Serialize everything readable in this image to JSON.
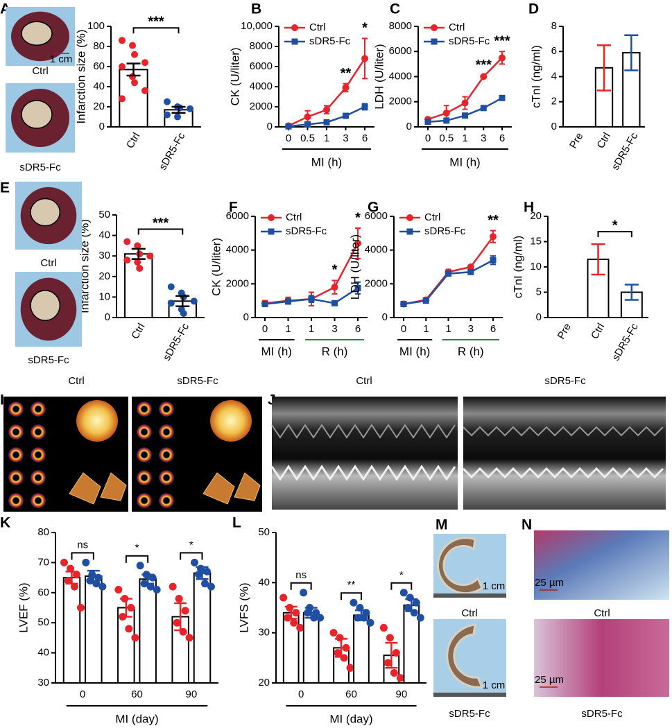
{
  "chart_data": [
    {
      "panel": "A",
      "type": "bar",
      "ylabel": "Infarction size (%)",
      "categories": [
        "Ctrl",
        "sDR5-Fc"
      ],
      "values": [
        57,
        17
      ],
      "errors": [
        6,
        3
      ],
      "points": [
        [
          86,
          81,
          72,
          64,
          60,
          50,
          44,
          36,
          28
        ],
        [
          25,
          20,
          19,
          18,
          12,
          10
        ]
      ],
      "colors": [
        "#e8232a",
        "#1f4fa3"
      ],
      "errorbar_color": "#000000",
      "ylim": [
        0,
        100
      ],
      "yticks": [
        0,
        20,
        40,
        60,
        80,
        100
      ],
      "annotations": [
        "***",
        null
      ],
      "image_labels": [
        "Ctrl",
        "sDR5-Fc"
      ],
      "image_scale": "1 cm"
    },
    {
      "panel": "B",
      "type": "line",
      "ylabel": "CK (U/liter)",
      "xlabel": "MI (h)",
      "categories": [
        "0",
        "0.5",
        "1",
        "3",
        "6"
      ],
      "series": [
        {
          "name": "Ctrl",
          "color": "#e8232a",
          "marker": "circle",
          "values": [
            100,
            1000,
            1700,
            3900,
            6800
          ],
          "errors": [
            50,
            600,
            400,
            400,
            2000
          ]
        },
        {
          "name": "sDR5-Fc",
          "color": "#1f4fa3",
          "marker": "square",
          "values": [
            50,
            250,
            450,
            1100,
            2000
          ],
          "errors": [
            30,
            100,
            100,
            200,
            300
          ]
        }
      ],
      "ylim": [
        0,
        10000
      ],
      "yticks": [
        0,
        2000,
        4000,
        6000,
        8000,
        {
          "value": 10000,
          "label": "10,000"
        }
      ],
      "annotations": [
        null,
        null,
        null,
        "**",
        "*"
      ]
    },
    {
      "panel": "C",
      "type": "line",
      "ylabel": "LDH (U/liter)",
      "xlabel": "MI (h)",
      "categories": [
        "0",
        "0.5",
        "1",
        "3",
        "6"
      ],
      "series": [
        {
          "name": "Ctrl",
          "color": "#e8232a",
          "marker": "circle",
          "values": [
            600,
            1100,
            1900,
            4000,
            5500
          ],
          "errors": [
            100,
            600,
            500,
            100,
            500
          ]
        },
        {
          "name": "sDR5-Fc",
          "color": "#1f4fa3",
          "marker": "square",
          "values": [
            400,
            500,
            900,
            1500,
            2300
          ],
          "errors": [
            50,
            80,
            100,
            100,
            100
          ]
        }
      ],
      "ylim": [
        0,
        8000
      ],
      "yticks": [
        0,
        2000,
        4000,
        6000,
        8000
      ],
      "annotations": [
        null,
        null,
        null,
        "***",
        "***"
      ]
    },
    {
      "panel": "D",
      "type": "bar",
      "ylabel": "cTnI (ng/ml)",
      "categories": [
        "Pre",
        "Ctrl",
        "sDR5-Fc"
      ],
      "values": [
        0,
        4.7,
        5.9
      ],
      "errors": [
        null,
        1.8,
        1.4
      ],
      "colors": [
        "#000000",
        "#e8232a",
        "#1f4fa3"
      ],
      "ylim": [
        0,
        8
      ],
      "yticks": [
        0,
        2,
        4,
        6,
        8
      ]
    },
    {
      "panel": "E",
      "type": "bar",
      "ylabel": "Infarction size (%)",
      "categories": [
        "Ctrl",
        "sDR5-Fc"
      ],
      "values": [
        31,
        8
      ],
      "errors": [
        2.5,
        2.5
      ],
      "points": [
        [
          37,
          35,
          31,
          30,
          28,
          27,
          24
        ],
        [
          15,
          12,
          10,
          8,
          7,
          4,
          2
        ]
      ],
      "colors": [
        "#e8232a",
        "#1f4fa3"
      ],
      "errorbar_color": "#000000",
      "ylim": [
        0,
        50
      ],
      "yticks": [
        0,
        10,
        20,
        30,
        40,
        50
      ],
      "annotations": [
        "***",
        null
      ],
      "image_labels": [
        "Ctrl",
        "sDR5-Fc"
      ]
    },
    {
      "panel": "F",
      "type": "line",
      "ylabel": "CK (U/liter)",
      "categories": [
        "0",
        "1",
        "1",
        "3",
        "6"
      ],
      "groups": [
        0,
        0,
        1,
        1,
        1
      ],
      "group_labels": [
        "MI (h)",
        "R (h)"
      ],
      "group_colors": [
        "#000000",
        "#1f8a3a"
      ],
      "series": [
        {
          "name": "Ctrl",
          "color": "#e8232a",
          "marker": "circle",
          "values": [
            850,
            1000,
            1100,
            1800,
            4400
          ],
          "errors": [
            150,
            200,
            400,
            400,
            900
          ]
        },
        {
          "name": "sDR5-Fc",
          "color": "#1f4fa3",
          "marker": "square",
          "values": [
            800,
            950,
            1100,
            850,
            1750
          ],
          "errors": [
            100,
            150,
            200,
            80,
            350
          ]
        }
      ],
      "ylim": [
        0,
        6000
      ],
      "yticks": [
        0,
        2000,
        4000,
        6000
      ],
      "annotations": [
        null,
        null,
        null,
        "*",
        "*"
      ]
    },
    {
      "panel": "G",
      "type": "line",
      "ylabel": "LDH (U/liter)",
      "categories": [
        "0",
        "1",
        "1",
        "3",
        "6"
      ],
      "groups": [
        0,
        0,
        1,
        1,
        1
      ],
      "group_labels": [
        "MI (h)",
        "R (h)"
      ],
      "group_colors": [
        "#000000",
        "#1f8a3a"
      ],
      "series": [
        {
          "name": "Ctrl",
          "color": "#e8232a",
          "marker": "circle",
          "values": [
            800,
            1050,
            2700,
            3000,
            4800
          ],
          "errors": [
            50,
            80,
            150,
            100,
            350
          ]
        },
        {
          "name": "sDR5-Fc",
          "color": "#1f4fa3",
          "marker": "square",
          "values": [
            800,
            1000,
            2600,
            2700,
            3400
          ],
          "errors": [
            50,
            80,
            100,
            100,
            250
          ]
        }
      ],
      "ylim": [
        0,
        6000
      ],
      "yticks": [
        0,
        2000,
        4000,
        6000
      ],
      "annotations": [
        null,
        null,
        null,
        null,
        "**"
      ]
    },
    {
      "panel": "H",
      "type": "bar",
      "ylabel": "cTnI (ng/ml)",
      "categories": [
        "Pre",
        "Ctrl",
        "sDR5-Fc"
      ],
      "values": [
        0,
        11.5,
        5
      ],
      "errors": [
        null,
        3,
        1.5
      ],
      "colors": [
        "#000000",
        "#e8232a",
        "#1f4fa3"
      ],
      "ylim": [
        0,
        20
      ],
      "yticks": [
        0,
        5,
        10,
        15,
        20
      ],
      "annotations": [
        null,
        "*",
        null
      ]
    },
    {
      "panel": "K",
      "type": "grouped_bar",
      "ylabel": "LVEF (%)",
      "xlabel": "MI (day)",
      "categories": [
        "0",
        "60",
        "90"
      ],
      "series": [
        {
          "color": "#e8232a",
          "values": [
            65,
            55,
            52
          ],
          "errors": [
            2,
            3,
            4.5
          ],
          "points": [
            [
              70,
              68,
              66,
              64,
              62,
              55
            ],
            [
              61,
              58,
              55,
              52,
              48,
              45
            ],
            [
              62,
              58,
              54,
              50,
              47,
              45
            ]
          ]
        },
        {
          "color": "#1f4fa3",
          "values": [
            65.5,
            64.5,
            66.5
          ],
          "errors": [
            1.8,
            1.5,
            2
          ],
          "points": [
            [
              70,
              66,
              65,
              64,
              63,
              62
            ],
            [
              69,
              66,
              65,
              63,
              62,
              61
            ],
            [
              70,
              68,
              67,
              66,
              63,
              62
            ]
          ]
        }
      ],
      "ylim": [
        30,
        80
      ],
      "yticks": [
        30,
        40,
        50,
        60,
        70,
        80
      ],
      "annotations": [
        "ns",
        "*",
        "*"
      ]
    },
    {
      "panel": "L",
      "type": "grouped_bar",
      "ylabel": "LVFS (%)",
      "xlabel": "MI (day)",
      "categories": [
        "0",
        "60",
        "90"
      ],
      "series": [
        {
          "color": "#e8232a",
          "values": [
            34,
            27,
            25.5
          ],
          "errors": [
            1.2,
            1.8,
            2.5
          ],
          "points": [
            [
              37,
              35,
              34,
              33,
              32,
              31
            ],
            [
              30,
              29,
              27,
              26,
              25,
              23
            ],
            [
              31,
              29,
              26,
              24,
              22,
              21
            ]
          ]
        },
        {
          "color": "#1f4fa3",
          "values": [
            34,
            33.5,
            35.5
          ],
          "errors": [
            1,
            1,
            1.2
          ],
          "points": [
            [
              38,
              35,
              34,
              34,
              33,
              33
            ],
            [
              36,
              35,
              34,
              33,
              33,
              32
            ],
            [
              38,
              37,
              36,
              35,
              34,
              33
            ]
          ]
        }
      ],
      "ylim": [
        20,
        50
      ],
      "yticks": [
        20,
        30,
        40,
        50
      ],
      "annotations": [
        "ns",
        "**",
        "*"
      ]
    }
  ],
  "image_panels": [
    {
      "panel": "I",
      "labels": [
        "Ctrl",
        "sDR5-Fc"
      ],
      "label_colors": [
        "#e8232a",
        "#1f4fa3"
      ]
    },
    {
      "panel": "J",
      "labels": [
        "Ctrl",
        "sDR5-Fc"
      ],
      "label_colors": [
        "#e8232a",
        "#1f4fa3"
      ]
    },
    {
      "panel": "M",
      "labels": [
        "Ctrl",
        "sDR5-Fc"
      ],
      "label_colors": [
        "#000000",
        "#000000"
      ],
      "scale": "1 cm"
    },
    {
      "panel": "N",
      "labels": [
        "Ctrl",
        "sDR5-Fc"
      ],
      "label_colors": [
        "#000000",
        "#000000"
      ],
      "scale": "25 µm"
    }
  ]
}
